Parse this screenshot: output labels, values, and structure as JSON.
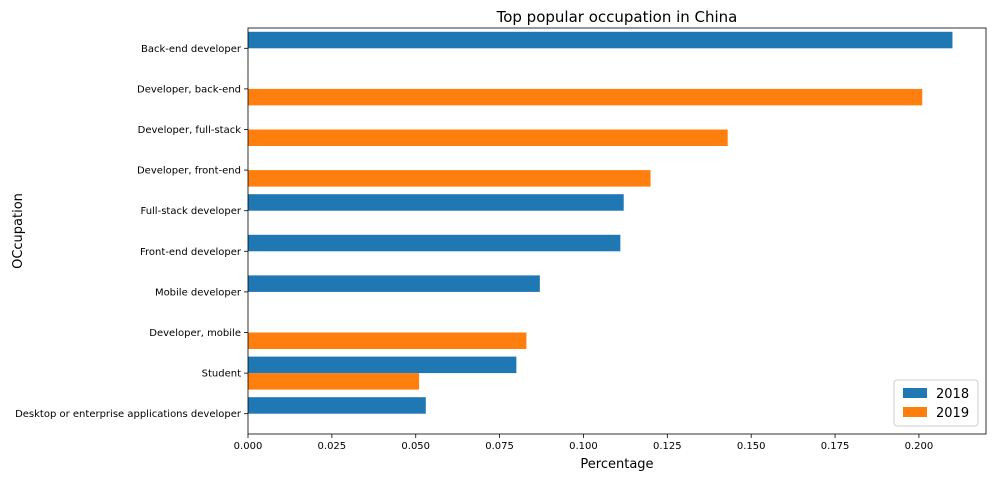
{
  "chart_data": {
    "type": "bar",
    "orientation": "horizontal",
    "title": "Top popular occupation in China",
    "xlabel": "Percentage",
    "ylabel": "OCcupation",
    "xlim": [
      0.0,
      0.22
    ],
    "xticks": [
      "0.000",
      "0.025",
      "0.050",
      "0.075",
      "0.100",
      "0.125",
      "0.150",
      "0.175",
      "0.200"
    ],
    "grid": false,
    "legend_position": "bottom-right",
    "categories": [
      "Back-end developer",
      "Developer, back-end",
      "Developer, full-stack",
      "Developer, front-end",
      "Full-stack developer",
      "Front-end developer",
      "Mobile developer",
      "Developer, mobile",
      "Student",
      "Desktop or enterprise applications developer"
    ],
    "series": [
      {
        "name": "2018",
        "color": "#1f77b4",
        "values": [
          0.21,
          null,
          null,
          null,
          0.112,
          0.111,
          0.087,
          null,
          0.08,
          0.053
        ]
      },
      {
        "name": "2019",
        "color": "#ff7f0e",
        "values": [
          null,
          0.201,
          0.143,
          0.12,
          null,
          null,
          null,
          0.083,
          0.051,
          null
        ]
      }
    ]
  }
}
